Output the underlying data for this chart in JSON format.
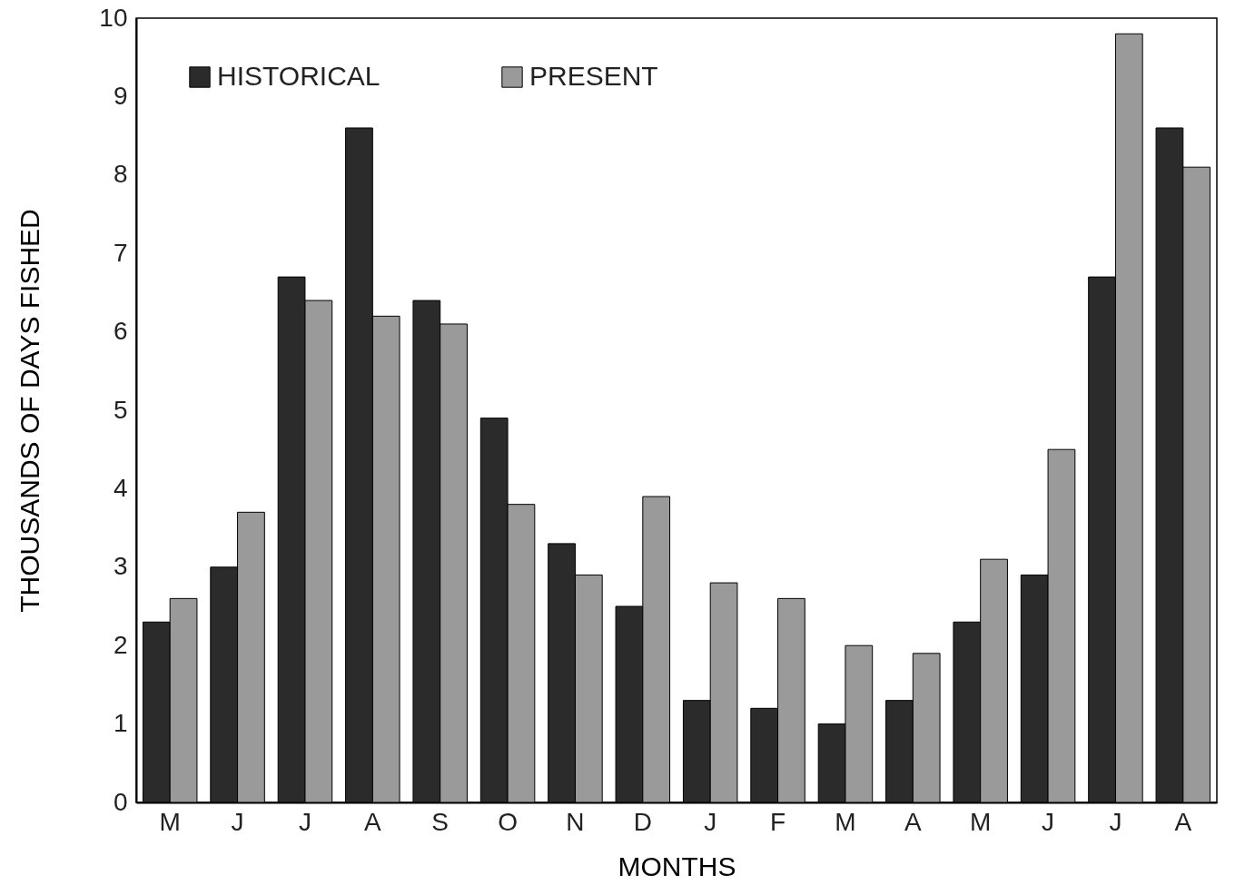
{
  "chart_data": {
    "type": "bar",
    "xlabel": "MONTHS",
    "ylabel": "THOUSANDS OF DAYS FISHED",
    "categories": [
      "M",
      "J",
      "J",
      "A",
      "S",
      "O",
      "N",
      "D",
      "J",
      "F",
      "M",
      "A",
      "M",
      "J",
      "J",
      "A"
    ],
    "series": [
      {
        "name": "HISTORICAL",
        "color": "#2b2b2b",
        "values": [
          2.3,
          3.0,
          6.7,
          8.6,
          6.4,
          4.9,
          3.3,
          2.5,
          1.3,
          1.2,
          1.0,
          1.3,
          2.3,
          2.9,
          6.7,
          8.6
        ]
      },
      {
        "name": "PRESENT",
        "color": "#9a9a9a",
        "values": [
          2.6,
          3.7,
          6.4,
          6.2,
          6.1,
          3.8,
          2.9,
          3.9,
          2.8,
          2.6,
          2.0,
          1.9,
          3.1,
          4.5,
          9.8,
          8.1
        ]
      }
    ],
    "ylim": [
      0,
      10
    ],
    "yticks": [
      0,
      1,
      2,
      3,
      4,
      5,
      6,
      7,
      8,
      9,
      10
    ],
    "grid": false,
    "legend": "top left"
  }
}
